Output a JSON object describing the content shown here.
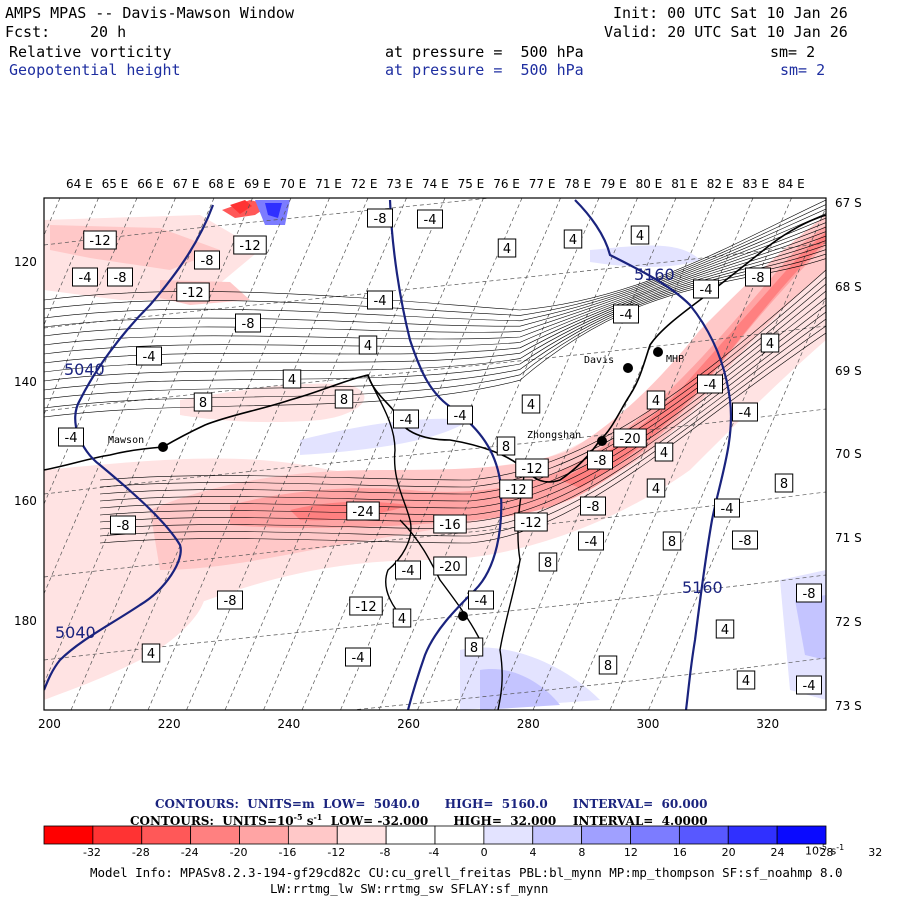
{
  "header": {
    "title": "AMPS MPAS -- Davis-Mawson Window",
    "fcst_label": "Fcst:",
    "fcst_value": "20 h",
    "init": "Init: 00 UTC Sat 10 Jan 26",
    "valid": "Valid: 20 UTC Sat 10 Jan 26",
    "field1": {
      "name": "Relative vorticity",
      "pressure": "at pressure =  500 hPa",
      "sm": "sm= 2"
    },
    "field2": {
      "name": "Geopotential height",
      "pressure": "at pressure =  500 hPa",
      "sm": "sm= 2"
    }
  },
  "map": {
    "lon_labels": [
      "64 E",
      "65 E",
      "66 E",
      "67 E",
      "68 E",
      "69 E",
      "70 E",
      "71 E",
      "72 E",
      "73 E",
      "74 E",
      "75 E",
      "76 E",
      "77 E",
      "78 E",
      "79 E",
      "80 E",
      "81 E",
      "82 E",
      "83 E",
      "84 E"
    ],
    "lat_labels": [
      "67 S",
      "68 S",
      "69 S",
      "70 S",
      "71 S",
      "72 S",
      "73 S"
    ],
    "x_ticks": [
      "200",
      "220",
      "240",
      "260",
      "280",
      "300",
      "320"
    ],
    "y_ticks": [
      "120",
      "140",
      "160",
      "180"
    ],
    "stations": [
      "Davis",
      "Mawson",
      "Zhongshan",
      "MHP"
    ],
    "height_labels": [
      "5040",
      "5040",
      "5160",
      "5160"
    ],
    "vort_labels": [
      "-12",
      "-12",
      "-8",
      "-4",
      "-8",
      "-12",
      "-8",
      "-8",
      "-4",
      "4",
      "4",
      "4",
      "-4",
      "-4",
      "-4",
      "4",
      "-4",
      "4",
      "8",
      "-4",
      "8",
      "-4",
      "4",
      "-12",
      "-24",
      "-16",
      "-12",
      "-12",
      "-8",
      "-20",
      "-8",
      "-4",
      "-20",
      "-12",
      "-8",
      "-8",
      "-4",
      "8",
      "8",
      "4",
      "-4",
      "-4",
      "4",
      "4",
      "4",
      "-8",
      "-4",
      "-8",
      "-4",
      "8",
      "8",
      "-4",
      "4",
      "-4",
      "4",
      "8",
      "8",
      "4",
      "4",
      "-8",
      "-4"
    ]
  },
  "contour_info": {
    "line1": {
      "label": "CONTOURS:  UNITS=m  LOW=",
      "low": "5040.0",
      "high_label": "HIGH=",
      "high": "5160.0",
      "int_label": "INTERVAL=",
      "interval": "60.000"
    },
    "line2": {
      "label": "CONTOURS:  UNITS=10",
      "exp": "-5",
      "unit_tail": " s",
      "unit_exp": "-1",
      "low_label": "  LOW=",
      "low": "-32.000",
      "high_label": "HIGH=",
      "high": "32.000",
      "int_label": "INTERVAL=",
      "interval": "4.0000"
    }
  },
  "colorbar": {
    "colors": [
      "#ff0000",
      "#ff3333",
      "#ff5858",
      "#ff8080",
      "#ffa4a4",
      "#ffc8c8",
      "#ffe3e3",
      "#ffffff",
      "#ffffff",
      "#e3e3ff",
      "#c4c4ff",
      "#a0a0ff",
      "#7c7cff",
      "#5858ff",
      "#3030ff",
      "#0a0aff"
    ],
    "ticks": [
      "-32",
      "-28",
      "-24",
      "-20",
      "-16",
      "-12",
      "-8",
      "-4",
      "0",
      "4",
      "8",
      "12",
      "16",
      "20",
      "24",
      "28",
      "32"
    ],
    "unit_base": "10",
    "unit_exp": "-5",
    "unit_s": " s",
    "unit_sexp": "-1"
  },
  "model_info": {
    "line1": "Model Info: MPASv8.2.3-194-gf29cd82c CU:cu_grell_freitas PBL:bl_mynn MP:mp_thompson SF:sf_noahmp 8.0",
    "line2": "LW:rrtmg_lw SW:rrtmg_sw SFLAY:sf_mynn"
  },
  "colors": {
    "height_contour": "#1a237e",
    "header_blue": "#1e2ea0"
  }
}
